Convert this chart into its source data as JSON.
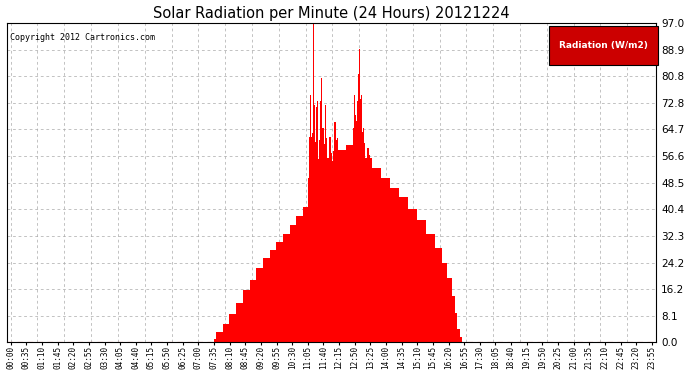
{
  "title": "Solar Radiation per Minute (24 Hours) 20121224",
  "copyright": "Copyright 2012 Cartronics.com",
  "legend_label": "Radiation (W/m2)",
  "bar_color": "#FF0000",
  "legend_bg": "#CC0000",
  "legend_text_color": "#FFFFFF",
  "background_color": "#FFFFFF",
  "grid_color": "#AAAAAA",
  "dashed_zero_color": "#FF0000",
  "ylim": [
    0,
    97.0
  ],
  "yticks": [
    0.0,
    8.1,
    16.2,
    24.2,
    32.3,
    40.4,
    48.5,
    56.6,
    64.7,
    72.8,
    80.8,
    88.9,
    97.0
  ],
  "tick_interval_min": 35,
  "n_minutes": 1440,
  "figsize": [
    6.9,
    3.75
  ],
  "dpi": 100
}
